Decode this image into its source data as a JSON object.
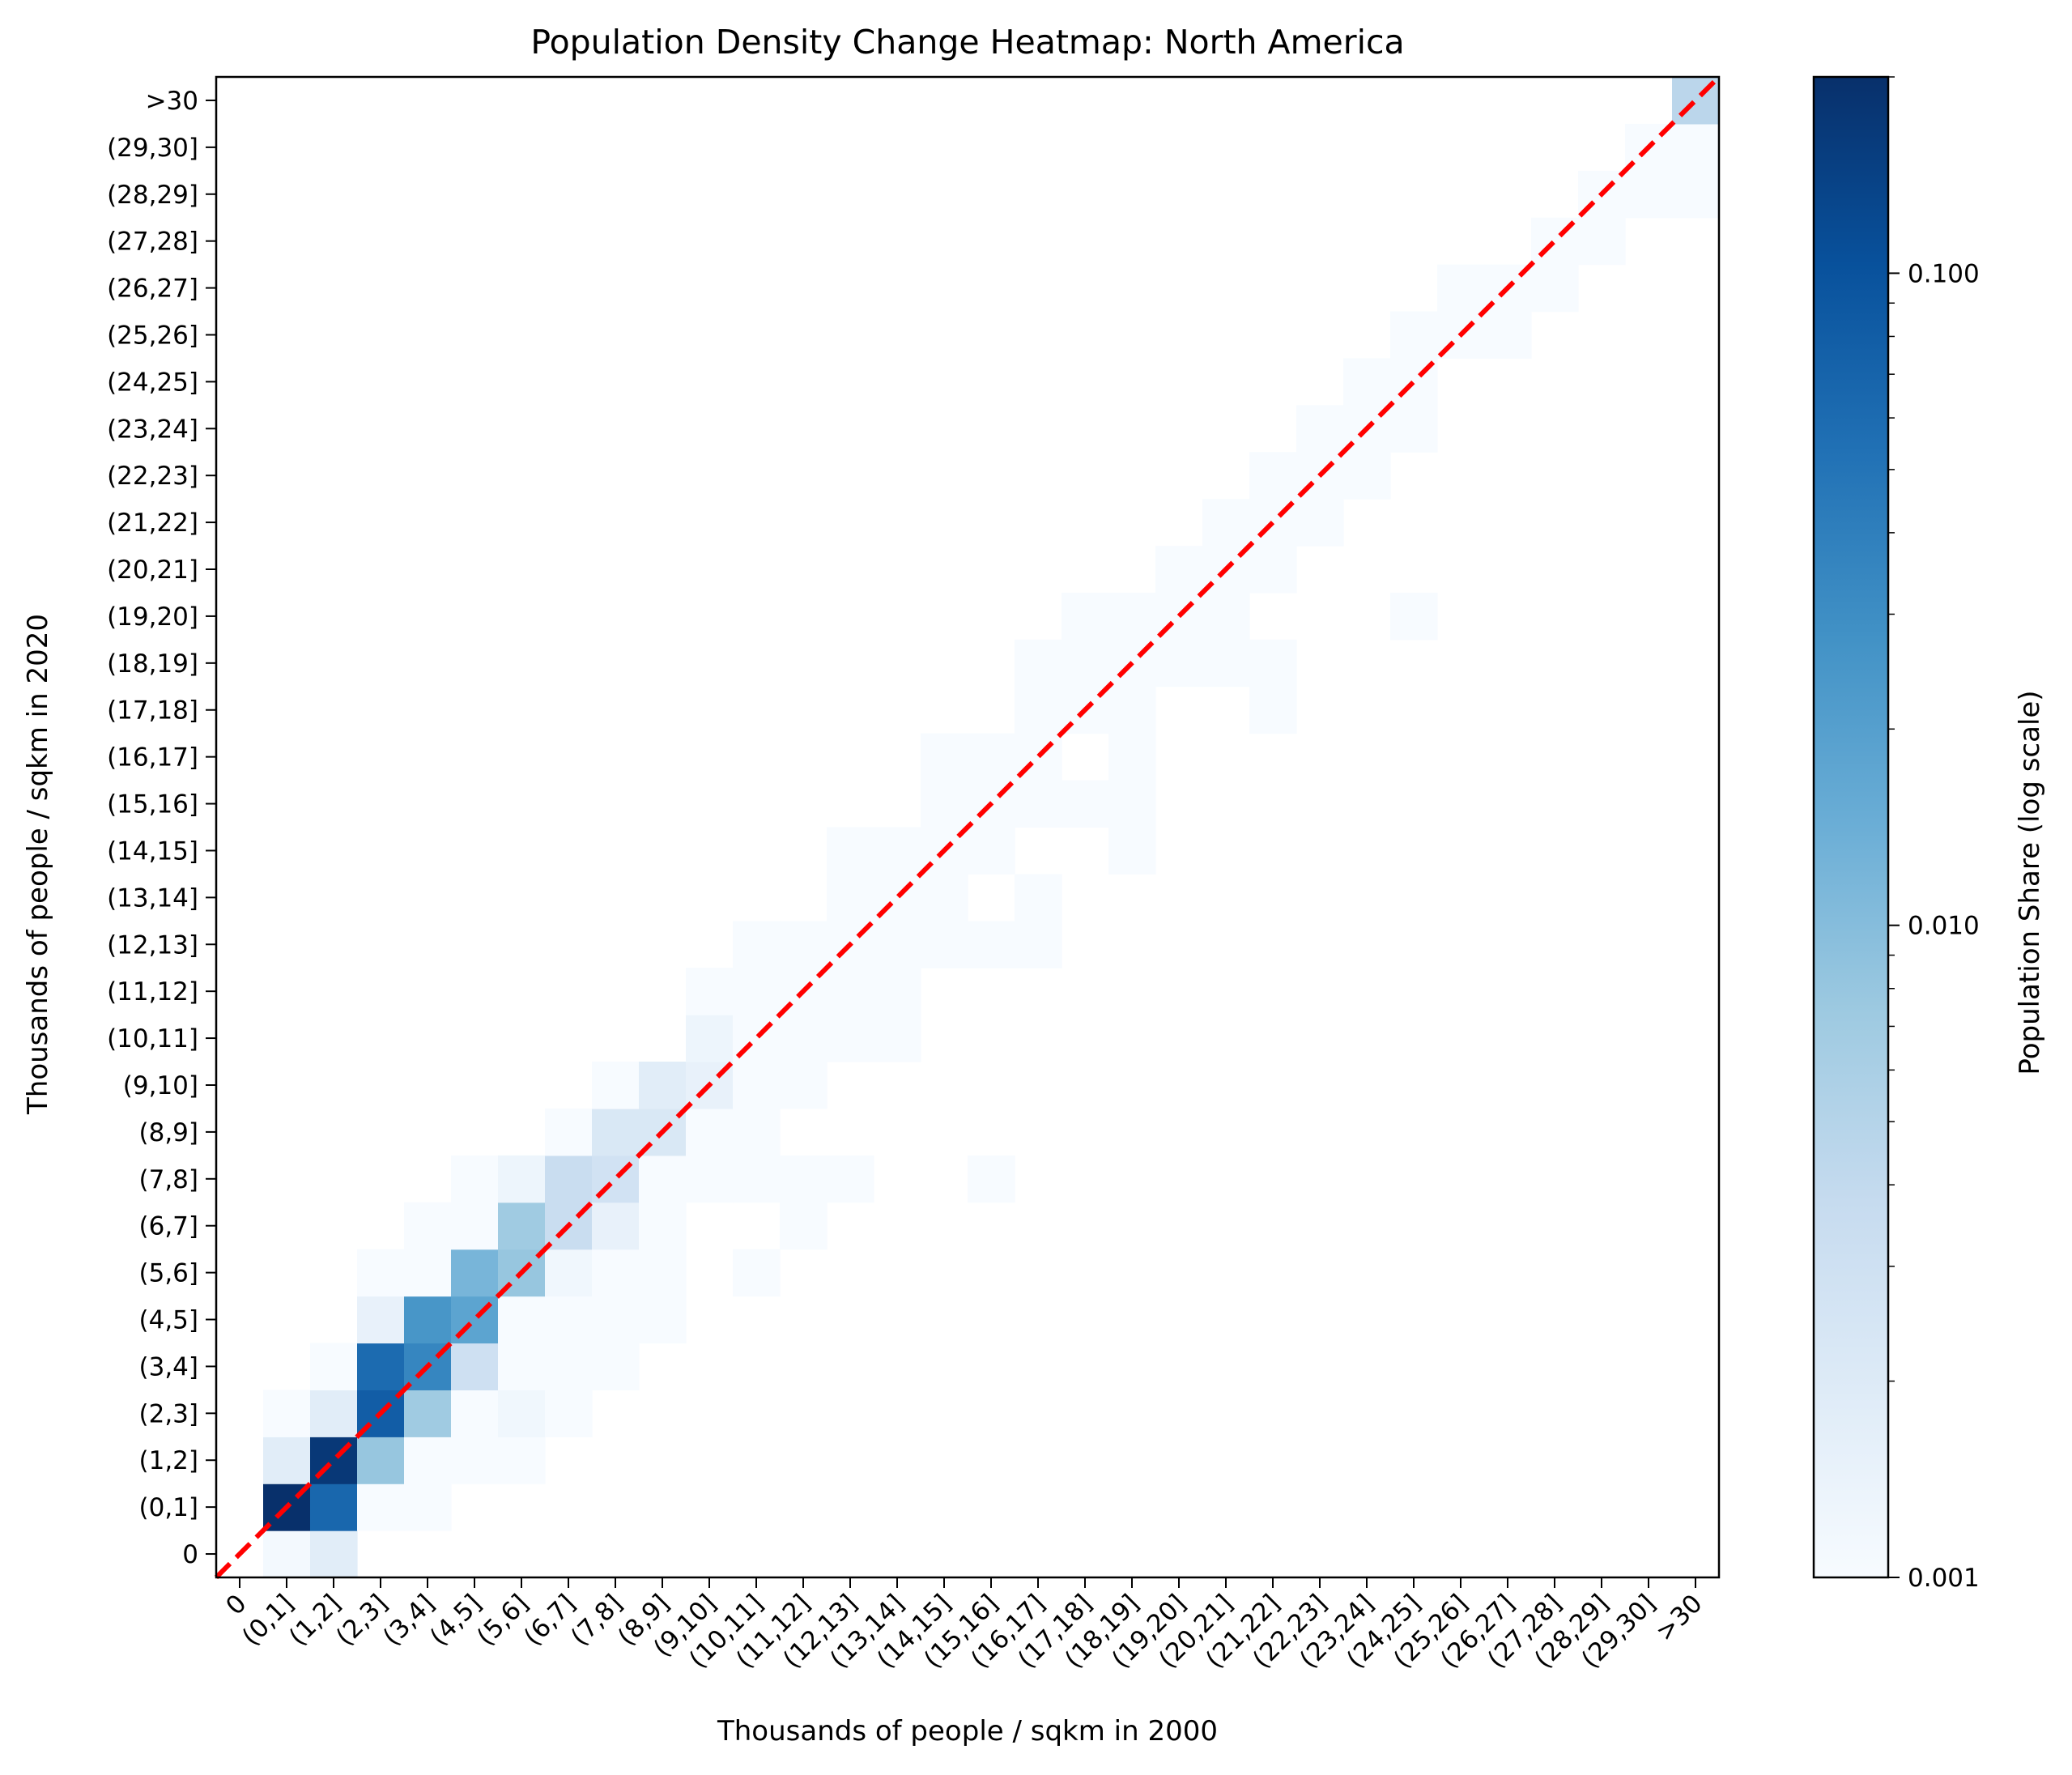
{
  "chart_data": {
    "type": "heatmap",
    "title": "Population Density Change Heatmap: North America",
    "xlabel": "Thousands of people / sqkm in 2000",
    "ylabel": "Thousands of people / sqkm in 2020",
    "categories": [
      "0",
      "(0,1]",
      "(1,2]",
      "(2,3]",
      "(3,4]",
      "(4,5]",
      "(5,6]",
      "(6,7]",
      "(7,8]",
      "(8,9]",
      "(9,10]",
      "(10,11]",
      "(11,12]",
      "(12,13]",
      "(13,14]",
      "(14,15]",
      "(15,16]",
      "(16,17]",
      "(17,18]",
      "(18,19]",
      "(19,20]",
      "(20,21]",
      "(21,22]",
      "(22,23]",
      "(23,24]",
      "(24,25]",
      "(25,26]",
      "(26,27]",
      "(27,28]",
      "(28,29]",
      "(29,30]",
      ">30"
    ],
    "colorbar": {
      "label": "Population Share (log scale)",
      "scale": "log",
      "range": [
        0.001,
        0.2
      ],
      "tick_labels": [
        "0.100",
        "0.010",
        "0.001"
      ],
      "tick_values": [
        0.1,
        0.01,
        0.001
      ]
    },
    "colormap": "Blues",
    "diagonal_line": {
      "style": "dashed",
      "color": "#ff0000"
    },
    "grid": false,
    "cells": [
      [
        1,
        0,
        0.0011
      ],
      [
        1,
        1,
        0.2
      ],
      [
        1,
        2,
        0.0018
      ],
      [
        1,
        3,
        0.001
      ],
      [
        2,
        0,
        0.0018
      ],
      [
        2,
        1,
        0.065
      ],
      [
        2,
        2,
        0.17
      ],
      [
        2,
        3,
        0.0018
      ],
      [
        2,
        4,
        0.001
      ],
      [
        3,
        1,
        0.001
      ],
      [
        3,
        2,
        0.008
      ],
      [
        3,
        3,
        0.08
      ],
      [
        3,
        4,
        0.06
      ],
      [
        3,
        5,
        0.0015
      ],
      [
        3,
        6,
        0.001
      ],
      [
        4,
        1,
        0.001
      ],
      [
        4,
        2,
        0.001
      ],
      [
        4,
        3,
        0.007
      ],
      [
        4,
        4,
        0.035
      ],
      [
        4,
        5,
        0.025
      ],
      [
        4,
        6,
        0.001
      ],
      [
        4,
        7,
        0.001
      ],
      [
        5,
        2,
        0.001
      ],
      [
        5,
        3,
        0.001
      ],
      [
        5,
        4,
        0.003
      ],
      [
        5,
        5,
        0.018
      ],
      [
        5,
        6,
        0.012
      ],
      [
        5,
        7,
        0.001
      ],
      [
        5,
        8,
        0.001
      ],
      [
        6,
        2,
        0.001
      ],
      [
        6,
        3,
        0.0012
      ],
      [
        6,
        4,
        0.001
      ],
      [
        6,
        5,
        0.001
      ],
      [
        6,
        6,
        0.008
      ],
      [
        6,
        7,
        0.007
      ],
      [
        6,
        8,
        0.0013
      ],
      [
        7,
        3,
        0.001
      ],
      [
        7,
        4,
        0.001
      ],
      [
        7,
        5,
        0.001
      ],
      [
        7,
        6,
        0.0012
      ],
      [
        7,
        7,
        0.0035
      ],
      [
        7,
        8,
        0.0035
      ],
      [
        7,
        9,
        0.001
      ],
      [
        8,
        4,
        0.001
      ],
      [
        8,
        5,
        0.001
      ],
      [
        8,
        6,
        0.001
      ],
      [
        8,
        7,
        0.0015
      ],
      [
        8,
        8,
        0.0028
      ],
      [
        8,
        9,
        0.0022
      ],
      [
        8,
        10,
        0.001
      ],
      [
        9,
        5,
        0.001
      ],
      [
        9,
        6,
        0.001
      ],
      [
        9,
        7,
        0.001
      ],
      [
        9,
        8,
        0.001
      ],
      [
        9,
        9,
        0.0022
      ],
      [
        9,
        10,
        0.0018
      ],
      [
        10,
        8,
        0.001
      ],
      [
        10,
        9,
        0.001
      ],
      [
        10,
        10,
        0.0015
      ],
      [
        10,
        11,
        0.0013
      ],
      [
        10,
        12,
        0.001
      ],
      [
        11,
        6,
        0.001
      ],
      [
        11,
        8,
        0.001
      ],
      [
        11,
        9,
        0.001
      ],
      [
        11,
        10,
        0.001
      ],
      [
        11,
        11,
        0.001
      ],
      [
        11,
        12,
        0.001
      ],
      [
        11,
        13,
        0.001
      ],
      [
        12,
        7,
        0.001
      ],
      [
        12,
        8,
        0.001
      ],
      [
        12,
        10,
        0.001
      ],
      [
        12,
        11,
        0.001
      ],
      [
        12,
        12,
        0.001
      ],
      [
        12,
        13,
        0.001
      ],
      [
        13,
        8,
        0.001
      ],
      [
        13,
        11,
        0.001
      ],
      [
        13,
        12,
        0.001
      ],
      [
        13,
        13,
        0.001
      ],
      [
        13,
        14,
        0.001
      ],
      [
        13,
        15,
        0.001
      ],
      [
        14,
        11,
        0.001
      ],
      [
        14,
        12,
        0.001
      ],
      [
        14,
        13,
        0.001
      ],
      [
        14,
        14,
        0.001
      ],
      [
        14,
        15,
        0.001
      ],
      [
        15,
        13,
        0.001
      ],
      [
        15,
        14,
        0.001
      ],
      [
        15,
        15,
        0.001
      ],
      [
        15,
        16,
        0.001
      ],
      [
        15,
        17,
        0.001
      ],
      [
        16,
        8,
        0.001
      ],
      [
        16,
        13,
        0.001
      ],
      [
        16,
        15,
        0.001
      ],
      [
        16,
        16,
        0.001
      ],
      [
        16,
        17,
        0.001
      ],
      [
        17,
        13,
        0.001
      ],
      [
        17,
        14,
        0.001
      ],
      [
        17,
        16,
        0.001
      ],
      [
        17,
        17,
        0.001
      ],
      [
        17,
        18,
        0.001
      ],
      [
        17,
        19,
        0.001
      ],
      [
        18,
        16,
        0.001
      ],
      [
        18,
        18,
        0.001
      ],
      [
        18,
        19,
        0.001
      ],
      [
        18,
        20,
        0.001
      ],
      [
        19,
        15,
        0.001
      ],
      [
        19,
        16,
        0.001
      ],
      [
        19,
        17,
        0.001
      ],
      [
        19,
        18,
        0.001
      ],
      [
        19,
        19,
        0.001
      ],
      [
        19,
        20,
        0.001
      ],
      [
        20,
        19,
        0.001
      ],
      [
        20,
        20,
        0.001
      ],
      [
        20,
        21,
        0.001
      ],
      [
        21,
        19,
        0.001
      ],
      [
        21,
        20,
        0.001
      ],
      [
        21,
        21,
        0.001
      ],
      [
        21,
        22,
        0.001
      ],
      [
        22,
        18,
        0.001
      ],
      [
        22,
        19,
        0.001
      ],
      [
        22,
        21,
        0.001
      ],
      [
        22,
        22,
        0.001
      ],
      [
        22,
        23,
        0.001
      ],
      [
        23,
        22,
        0.001
      ],
      [
        23,
        23,
        0.001
      ],
      [
        23,
        24,
        0.001
      ],
      [
        24,
        23,
        0.001
      ],
      [
        24,
        24,
        0.001
      ],
      [
        24,
        25,
        0.001
      ],
      [
        25,
        20,
        0.001
      ],
      [
        25,
        24,
        0.001
      ],
      [
        25,
        25,
        0.001
      ],
      [
        25,
        26,
        0.001
      ],
      [
        26,
        26,
        0.001
      ],
      [
        26,
        27,
        0.001
      ],
      [
        27,
        26,
        0.001
      ],
      [
        27,
        27,
        0.001
      ],
      [
        28,
        27,
        0.001
      ],
      [
        28,
        28,
        0.001
      ],
      [
        29,
        28,
        0.001
      ],
      [
        29,
        29,
        0.001
      ],
      [
        30,
        29,
        0.001
      ],
      [
        30,
        30,
        0.001
      ],
      [
        31,
        29,
        0.001
      ],
      [
        31,
        30,
        0.001
      ],
      [
        31,
        31,
        0.0045
      ]
    ]
  }
}
